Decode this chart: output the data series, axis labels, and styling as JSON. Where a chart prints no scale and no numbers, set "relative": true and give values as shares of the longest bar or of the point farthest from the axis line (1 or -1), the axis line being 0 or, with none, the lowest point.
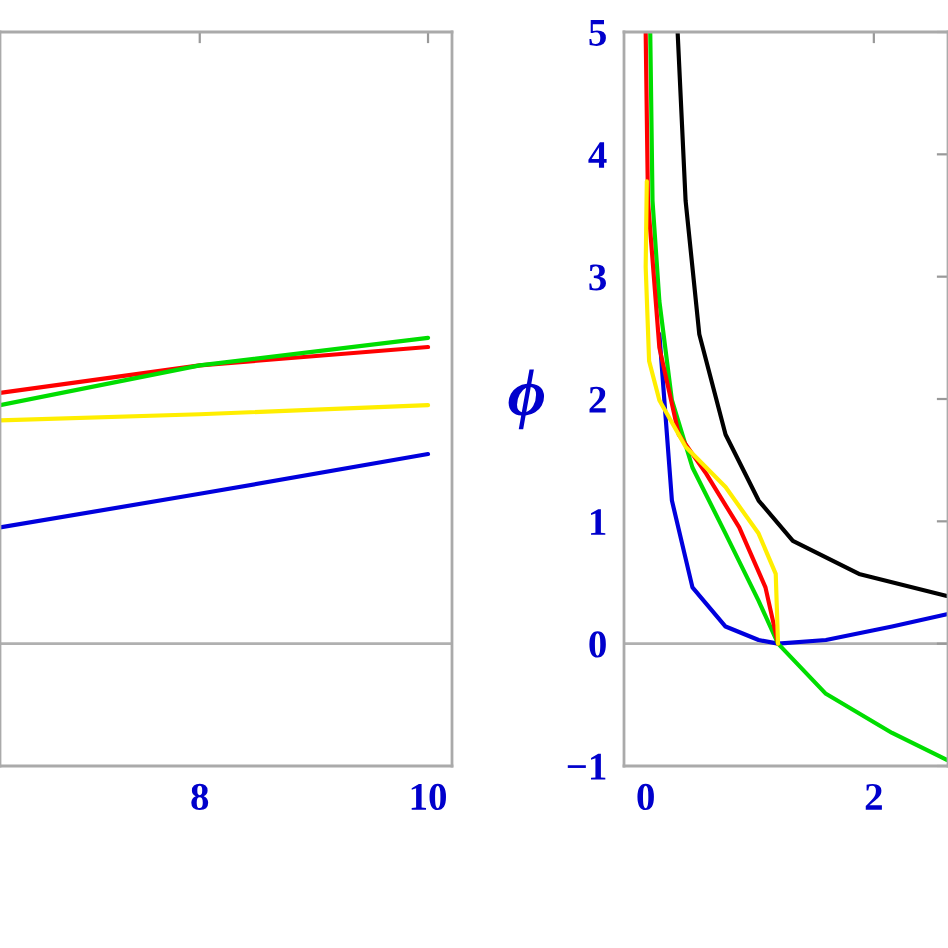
{
  "chart_data": [
    {
      "type": "line",
      "relative": true,
      "tick_labels": "x",
      "xlim": [
        6.25,
        10.21
      ],
      "xticks": [
        8,
        10
      ],
      "grid": false,
      "ref_lines": [
        {
          "axis": "y",
          "value": 0,
          "color": "#b0b0b0"
        }
      ],
      "series": [
        {
          "color": "#ff0000",
          "x": [
            6.25,
            8,
            10
          ],
          "values": [
            0.82,
            0.91,
            0.97
          ]
        },
        {
          "color": "#00dd00",
          "x": [
            6.25,
            8,
            10
          ],
          "values": [
            0.78,
            0.91,
            1.0
          ]
        },
        {
          "color": "#ffee00",
          "x": [
            6.25,
            8,
            10
          ],
          "values": [
            0.73,
            0.75,
            0.78
          ]
        },
        {
          "color": "#0000dd",
          "x": [
            6.25,
            8,
            10
          ],
          "values": [
            0.38,
            0.49,
            0.62
          ]
        }
      ]
    },
    {
      "type": "line",
      "ylabel": "ϕ",
      "xlim": [
        -0.19,
        2.65
      ],
      "xticks": [
        0,
        2
      ],
      "ylim": [
        -1,
        5
      ],
      "yticks": [
        {
          "value": -1,
          "label": "−1"
        },
        0,
        1,
        2,
        3,
        4,
        5
      ],
      "grid": false,
      "ref_lines": [
        {
          "axis": "y",
          "value": 0,
          "color": "#b0b0b0"
        }
      ],
      "series": [
        {
          "color": "#000000",
          "x": [
            0.28,
            0.35,
            0.47,
            0.7,
            0.99,
            1.29,
            1.87,
            2.64
          ],
          "values": [
            5,
            3.62,
            2.53,
            1.71,
            1.17,
            0.84,
            0.57,
            0.39
          ]
        },
        {
          "color": "#0000dd",
          "x": [
            0.12,
            0.23,
            0.41,
            0.7,
            0.99,
            1.16,
            1.58,
            2.16,
            2.64
          ],
          "values": [
            2.53,
            1.17,
            0.46,
            0.14,
            0.03,
            0,
            0.03,
            0.14,
            0.24
          ]
        },
        {
          "color": "#00dd00",
          "x": [
            0.04,
            0.06,
            0.12,
            0.23,
            0.41,
            0.7,
            0.99,
            1.16,
            1.58,
            2.16,
            2.64
          ],
          "values": [
            5,
            3.62,
            2.8,
            1.99,
            1.44,
            0.9,
            0.35,
            0,
            -0.41,
            -0.73,
            -0.95
          ]
        },
        {
          "color": "#ff0000",
          "x": [
            0.0,
            0.02,
            0.12,
            0.29,
            0.53,
            0.82,
            1.05,
            1.16
          ],
          "values": [
            5,
            3.62,
            2.42,
            1.71,
            1.39,
            0.95,
            0.46,
            0
          ]
        },
        {
          "color": "#ffee00",
          "x": [
            0.01,
            0.0,
            0.03,
            0.12,
            0.35,
            0.7,
            0.99,
            1.14,
            1.16
          ],
          "values": [
            3.78,
            3.08,
            2.31,
            1.99,
            1.61,
            1.28,
            0.9,
            0.57,
            0
          ]
        }
      ]
    }
  ]
}
